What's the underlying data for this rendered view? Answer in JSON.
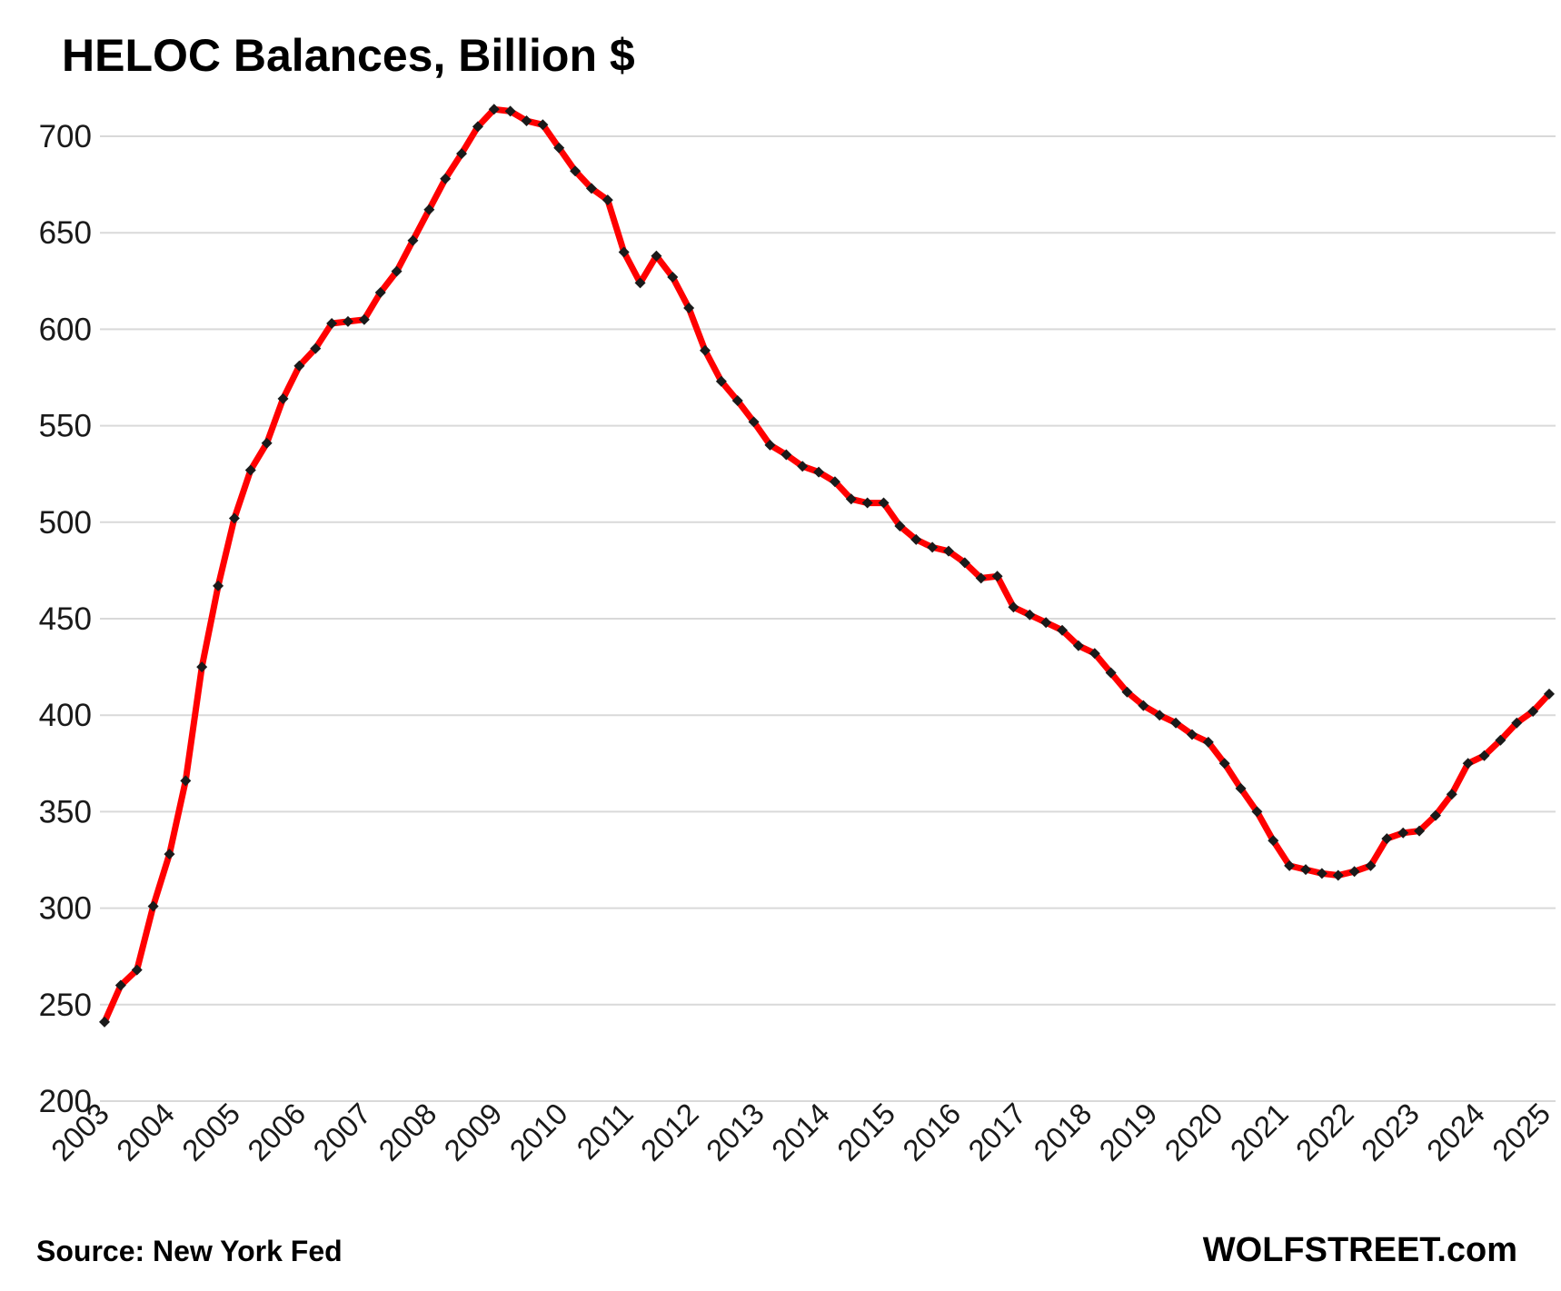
{
  "chart_data": {
    "type": "line",
    "title": "HELOC Balances, Billion $",
    "source": "Source: New York Fed",
    "brand": "WOLFSTREET.com",
    "ylim": [
      200,
      700
    ],
    "y_ticks": [
      200,
      250,
      300,
      350,
      400,
      450,
      500,
      550,
      600,
      650,
      700
    ],
    "x_tick_labels": [
      "2003",
      "2004",
      "2005",
      "2006",
      "2007",
      "2008",
      "2009",
      "2010",
      "2011",
      "2012",
      "2013",
      "2014",
      "2015",
      "2016",
      "2017",
      "2018",
      "2019",
      "2020",
      "2021",
      "2022",
      "2023",
      "2024",
      "2025"
    ],
    "grid": true,
    "line_color": "#ff0000",
    "marker_color": "#1a1a1a",
    "series": [
      {
        "values": [
          241,
          260,
          268,
          301,
          328,
          366,
          425,
          467,
          502,
          527,
          541,
          564,
          581,
          590,
          603,
          604,
          605,
          619,
          630,
          646,
          662,
          678,
          691,
          705,
          714,
          713,
          708,
          706,
          694,
          682,
          673,
          667,
          640,
          624,
          638,
          627,
          611,
          589,
          573,
          563,
          552,
          540,
          535,
          529,
          526,
          521,
          512,
          510,
          510,
          498,
          491,
          487,
          485,
          479,
          471,
          472,
          456,
          452,
          448,
          444,
          436,
          432,
          422,
          412,
          405,
          400,
          396,
          390,
          386,
          375,
          362,
          350,
          335,
          322,
          320,
          318,
          317,
          319,
          322,
          336,
          339,
          340,
          348,
          359,
          375,
          379,
          387,
          396,
          402,
          411
        ]
      }
    ]
  }
}
